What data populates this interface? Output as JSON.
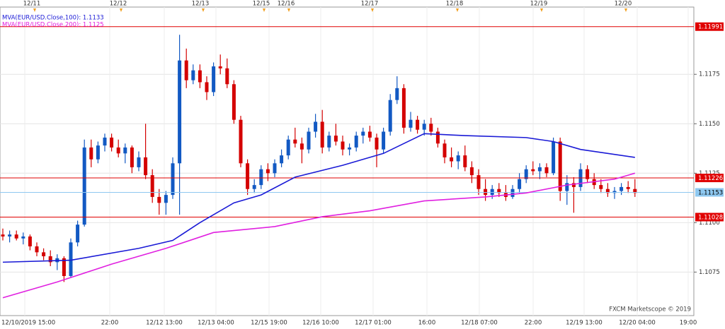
{
  "chart_data": {
    "type": "candlestick",
    "ylim": [
      1.1053,
      1.1209
    ],
    "yticks": [
      1.1075,
      {
        "value": 1.11,
        "label": "1.1100"
      },
      1.1125,
      {
        "value": 1.115,
        "label": "1.1150"
      },
      1.1175
    ],
    "top_dates": [
      "12/11",
      "12/12",
      "12/13",
      "12/15",
      "12/16",
      "12/17",
      "12/18",
      "12/19",
      "12/20"
    ],
    "bottom_times": [
      "12/10/2019 15:00",
      "22:00",
      "12/12 13:00",
      "12/13 04:00",
      "12/15 19:00",
      "12/16 10:00",
      "12/17 01:00",
      "16:00",
      "12/18 07:00",
      "22:00",
      "12/19 13:00",
      "12/20 04:00",
      "19:00"
    ],
    "up_color": "#1259c3",
    "down_color": "#d40000",
    "ohlc": [
      [
        1.1094,
        1.1097,
        1.1091,
        1.1093
      ],
      [
        1.1093,
        1.1096,
        1.109,
        1.1094
      ],
      [
        1.1094,
        1.1096,
        1.1091,
        1.1092
      ],
      [
        1.1092,
        1.1095,
        1.1089,
        1.1093
      ],
      [
        1.1093,
        1.1094,
        1.1086,
        1.1088
      ],
      [
        1.1088,
        1.109,
        1.1083,
        1.1085
      ],
      [
        1.1085,
        1.1087,
        1.1081,
        1.1083
      ],
      [
        1.1083,
        1.1086,
        1.1078,
        1.108
      ],
      [
        1.108,
        1.1084,
        1.1076,
        1.1082
      ],
      [
        1.1082,
        1.1083,
        1.107,
        1.1073
      ],
      [
        1.1073,
        1.1092,
        1.1072,
        1.109
      ],
      [
        1.109,
        1.1101,
        1.1088,
        1.1099
      ],
      [
        1.1099,
        1.1142,
        1.1098,
        1.1138
      ],
      [
        1.1138,
        1.1142,
        1.1128,
        1.1132
      ],
      [
        1.1132,
        1.1141,
        1.113,
        1.1139
      ],
      [
        1.1139,
        1.1145,
        1.1136,
        1.1143
      ],
      [
        1.1143,
        1.1145,
        1.1136,
        1.1138
      ],
      [
        1.1138,
        1.1142,
        1.1133,
        1.1135
      ],
      [
        1.1135,
        1.114,
        1.113,
        1.1138
      ],
      [
        1.1138,
        1.1139,
        1.1125,
        1.1128
      ],
      [
        1.1128,
        1.1136,
        1.1126,
        1.1133
      ],
      [
        1.1133,
        1.115,
        1.1122,
        1.1124
      ],
      [
        1.1124,
        1.1127,
        1.111,
        1.1113
      ],
      [
        1.1113,
        1.1117,
        1.1104,
        1.111
      ],
      [
        1.111,
        1.1116,
        1.1104,
        1.1114
      ],
      [
        1.1114,
        1.1133,
        1.1112,
        1.113
      ],
      [
        1.113,
        1.1195,
        1.1104,
        1.1182
      ],
      [
        1.1182,
        1.1188,
        1.1168,
        1.1172
      ],
      [
        1.1172,
        1.118,
        1.117,
        1.1177
      ],
      [
        1.1177,
        1.118,
        1.1168,
        1.1171
      ],
      [
        1.1171,
        1.1174,
        1.1162,
        1.1166
      ],
      [
        1.1166,
        1.1181,
        1.1164,
        1.1179
      ],
      [
        1.1179,
        1.1185,
        1.1175,
        1.1178
      ],
      [
        1.1178,
        1.1183,
        1.1168,
        1.117
      ],
      [
        1.117,
        1.1172,
        1.115,
        1.1152
      ],
      [
        1.1152,
        1.1154,
        1.1128,
        1.113
      ],
      [
        1.113,
        1.1132,
        1.1114,
        1.1117
      ],
      [
        1.1117,
        1.1122,
        1.1115,
        1.1119
      ],
      [
        1.1119,
        1.1129,
        1.1117,
        1.1127
      ],
      [
        1.1127,
        1.113,
        1.1121,
        1.1125
      ],
      [
        1.1125,
        1.1132,
        1.1123,
        1.113
      ],
      [
        1.113,
        1.1137,
        1.1128,
        1.1134
      ],
      [
        1.1134,
        1.1144,
        1.1132,
        1.1142
      ],
      [
        1.1142,
        1.1148,
        1.1138,
        1.114
      ],
      [
        1.114,
        1.1143,
        1.113,
        1.1137
      ],
      [
        1.1137,
        1.1148,
        1.1135,
        1.1146
      ],
      [
        1.1146,
        1.1155,
        1.1143,
        1.1151
      ],
      [
        1.1151,
        1.1157,
        1.1135,
        1.1138
      ],
      [
        1.1138,
        1.1146,
        1.1136,
        1.1144
      ],
      [
        1.1144,
        1.115,
        1.1139,
        1.1141
      ],
      [
        1.1141,
        1.1144,
        1.1134,
        1.1137
      ],
      [
        1.1137,
        1.114,
        1.1134,
        1.1138
      ],
      [
        1.1138,
        1.1146,
        1.1136,
        1.1144
      ],
      [
        1.1144,
        1.1148,
        1.114,
        1.1146
      ],
      [
        1.1146,
        1.1149,
        1.1141,
        1.1143
      ],
      [
        1.1143,
        1.1145,
        1.1128,
        1.1137
      ],
      [
        1.1137,
        1.1148,
        1.1135,
        1.1146
      ],
      [
        1.1146,
        1.1165,
        1.1144,
        1.1162
      ],
      [
        1.1162,
        1.1174,
        1.116,
        1.1168
      ],
      [
        1.1168,
        1.117,
        1.1145,
        1.1148
      ],
      [
        1.1148,
        1.1156,
        1.1146,
        1.1152
      ],
      [
        1.1152,
        1.1154,
        1.1145,
        1.1147
      ],
      [
        1.1147,
        1.1152,
        1.1144,
        1.115
      ],
      [
        1.115,
        1.1153,
        1.1144,
        1.1146
      ],
      [
        1.1146,
        1.1148,
        1.1138,
        1.114
      ],
      [
        1.114,
        1.1142,
        1.113,
        1.1133
      ],
      [
        1.1133,
        1.1138,
        1.1128,
        1.1131
      ],
      [
        1.1131,
        1.1136,
        1.1127,
        1.1134
      ],
      [
        1.1134,
        1.1139,
        1.1126,
        1.1128
      ],
      [
        1.1128,
        1.1131,
        1.112,
        1.1124
      ],
      [
        1.1124,
        1.1127,
        1.1114,
        1.1117
      ],
      [
        1.1117,
        1.1122,
        1.1111,
        1.1114
      ],
      [
        1.1114,
        1.1119,
        1.1112,
        1.1117
      ],
      [
        1.1117,
        1.112,
        1.1113,
        1.1115
      ],
      [
        1.1115,
        1.1119,
        1.1111,
        1.1113
      ],
      [
        1.1113,
        1.1119,
        1.1112,
        1.1117
      ],
      [
        1.1117,
        1.1125,
        1.1115,
        1.1122
      ],
      [
        1.1122,
        1.1129,
        1.112,
        1.1127
      ],
      [
        1.1127,
        1.1131,
        1.1124,
        1.1126
      ],
      [
        1.1126,
        1.113,
        1.1122,
        1.1128
      ],
      [
        1.1128,
        1.113,
        1.1123,
        1.1125
      ],
      [
        1.1125,
        1.1143,
        1.1124,
        1.1141
      ],
      [
        1.1141,
        1.1143,
        1.1111,
        1.1116
      ],
      [
        1.1116,
        1.1124,
        1.1109,
        1.112
      ],
      [
        1.112,
        1.1123,
        1.1105,
        1.1118
      ],
      [
        1.1118,
        1.113,
        1.1116,
        1.1127
      ],
      [
        1.1127,
        1.1129,
        1.112,
        1.1122
      ],
      [
        1.1122,
        1.1125,
        1.1117,
        1.1119
      ],
      [
        1.1119,
        1.1122,
        1.1115,
        1.1117
      ],
      [
        1.1117,
        1.112,
        1.1113,
        1.1115
      ],
      [
        1.1115,
        1.1118,
        1.1112,
        1.1116
      ],
      [
        1.1116,
        1.112,
        1.1114,
        1.1118
      ],
      [
        1.1118,
        1.1121,
        1.1115,
        1.1117
      ],
      [
        1.1117,
        1.1122,
        1.1113,
        1.1115
      ]
    ],
    "series": [
      {
        "name": "MVA(EUR/USD.Close,100): 1.1133",
        "color": "#1a1ad6",
        "x": [
          0,
          10,
          20,
          25,
          29,
          34,
          38,
          43,
          50,
          56,
          62,
          68,
          77,
          81,
          85,
          93
        ],
        "values": [
          1.108,
          1.1081,
          1.1087,
          1.1091,
          1.11,
          1.111,
          1.1114,
          1.1123,
          1.1129,
          1.1135,
          1.1145,
          1.1144,
          1.1143,
          1.1141,
          1.1137,
          1.1133
        ]
      },
      {
        "name": "MVA(EUR/USD.Close,200): 1.1125",
        "color": "#e020e0",
        "x": [
          0,
          8,
          16,
          24,
          31,
          40,
          47,
          54,
          62,
          71,
          77,
          83,
          90,
          93
        ],
        "values": [
          1.1062,
          1.107,
          1.1079,
          1.1087,
          1.1095,
          1.1098,
          1.1103,
          1.1106,
          1.1111,
          1.1113,
          1.1115,
          1.1119,
          1.1122,
          1.1125
        ]
      }
    ],
    "levels": [
      {
        "value": 1.11991,
        "color": "#e00000"
      },
      {
        "value": 1.11226,
        "color": "#e00000"
      },
      {
        "value": 1.11153,
        "color": "#8ec8f0"
      },
      {
        "value": 1.11028,
        "color": "#e00000"
      }
    ],
    "watermark": "FXCM Marketscope © 2019"
  }
}
